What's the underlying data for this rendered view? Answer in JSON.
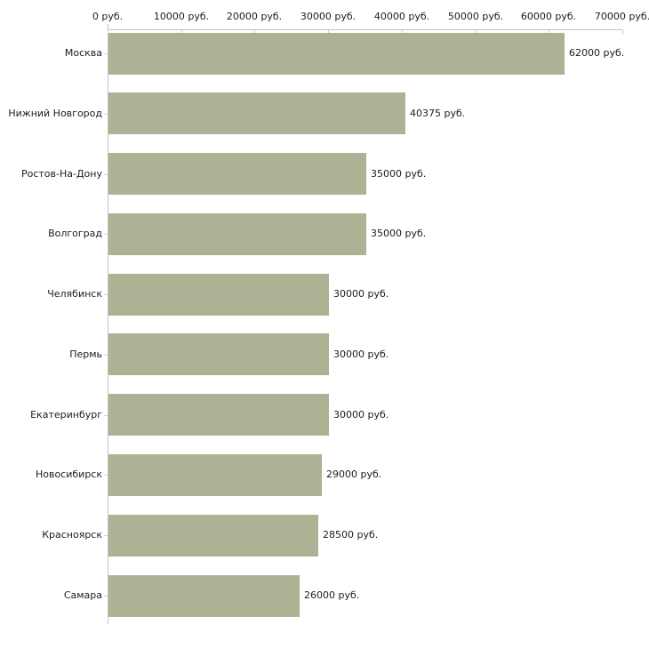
{
  "chart_data": {
    "type": "bar",
    "orientation": "horizontal",
    "title": "",
    "xlabel": "",
    "ylabel": "",
    "xlim": [
      0,
      70000
    ],
    "x_ticks": [
      0,
      10000,
      20000,
      30000,
      40000,
      50000,
      60000,
      70000
    ],
    "x_tick_labels": [
      "0 руб.",
      "10000 руб.",
      "20000 руб.",
      "30000 руб.",
      "40000 руб.",
      "50000 руб.",
      "60000 руб.",
      "70000 руб."
    ],
    "categories": [
      "Москва",
      "Нижний Новгород",
      "Ростов-На-Дону",
      "Волгоград",
      "Челябинск",
      "Пермь",
      "Екатеринбург",
      "Новосибирск",
      "Красноярск",
      "Самара"
    ],
    "values": [
      62000,
      40375,
      35000,
      35000,
      30000,
      30000,
      30000,
      29000,
      28500,
      26000
    ],
    "value_labels": [
      "62000 руб.",
      "40375 руб.",
      "35000 руб.",
      "35000 руб.",
      "30000 руб.",
      "30000 руб.",
      "30000 руб.",
      "29000 руб.",
      "28500 руб.",
      "26000 руб."
    ],
    "grid": false,
    "legend": null
  },
  "style": {
    "bar_color": "#adb294",
    "axis_color": "#c3c3c3",
    "tick_color": "#d2d5b4",
    "text_color": "#1c1c1c",
    "background": "#ffffff"
  }
}
